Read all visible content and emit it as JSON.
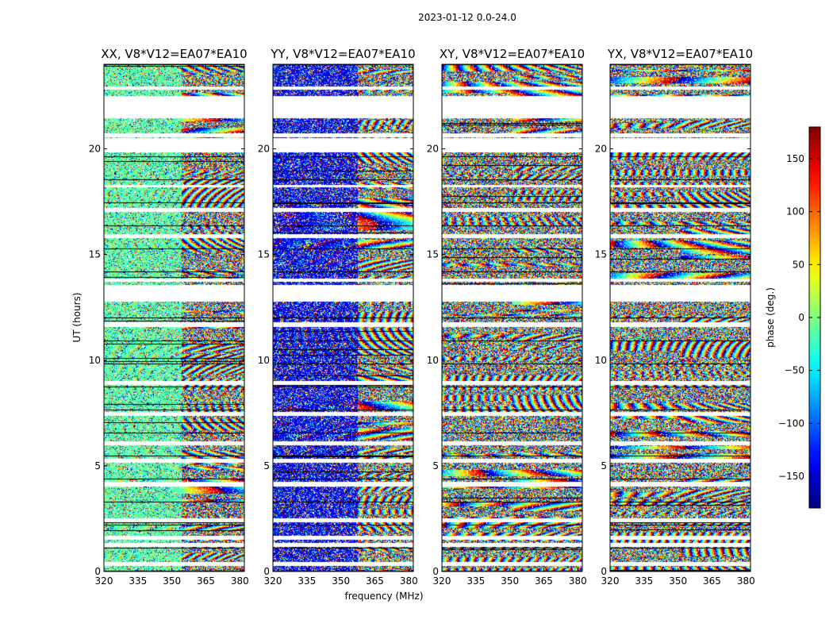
{
  "chart_data": {
    "type": "heatmap",
    "title": "2023-01-12 0.0-24.0",
    "xlabel": "frequency (MHz)",
    "ylabel": "UT (hours)",
    "colorbar_label": "phase (deg.)",
    "colormap": "jet",
    "clim": [
      -180,
      180
    ],
    "colorbar_ticks": [
      -150,
      -100,
      -50,
      0,
      50,
      100,
      150
    ],
    "colorbar_tick_labels": [
      "−150",
      "−100",
      "−50",
      "0",
      "50",
      "100",
      "150"
    ],
    "xlim": [
      320,
      382
    ],
    "ylim": [
      0,
      24
    ],
    "x_ticks": [
      320,
      335,
      350,
      365,
      380
    ],
    "y_ticks": [
      0,
      5,
      10,
      15,
      20
    ],
    "panels": [
      {
        "title": "XX, V8*V12=EA07*EA10",
        "style": "xx"
      },
      {
        "title": "YY, V8*V12=EA07*EA10",
        "style": "yy"
      },
      {
        "title": "XY, V8*V12=EA07*EA10",
        "style": "cross"
      },
      {
        "title": "YX, V8*V12=EA07*EA10",
        "style": "cross"
      }
    ],
    "gaps_hours": [
      [
        0.3,
        0.45
      ],
      [
        1.2,
        1.35
      ],
      [
        1.55,
        1.7
      ],
      [
        2.35,
        2.5
      ],
      [
        4.05,
        4.25
      ],
      [
        5.2,
        5.35
      ],
      [
        6.0,
        6.15
      ],
      [
        7.4,
        7.55
      ],
      [
        8.85,
        9.0
      ],
      [
        11.6,
        11.8
      ],
      [
        12.8,
        13.55
      ],
      [
        13.75,
        13.85
      ],
      [
        15.8,
        15.95
      ],
      [
        17.05,
        17.2
      ],
      [
        18.2,
        18.3
      ],
      [
        19.85,
        20.5
      ],
      [
        20.6,
        20.75
      ],
      [
        21.5,
        22.5
      ],
      [
        22.85,
        22.95
      ]
    ]
  }
}
